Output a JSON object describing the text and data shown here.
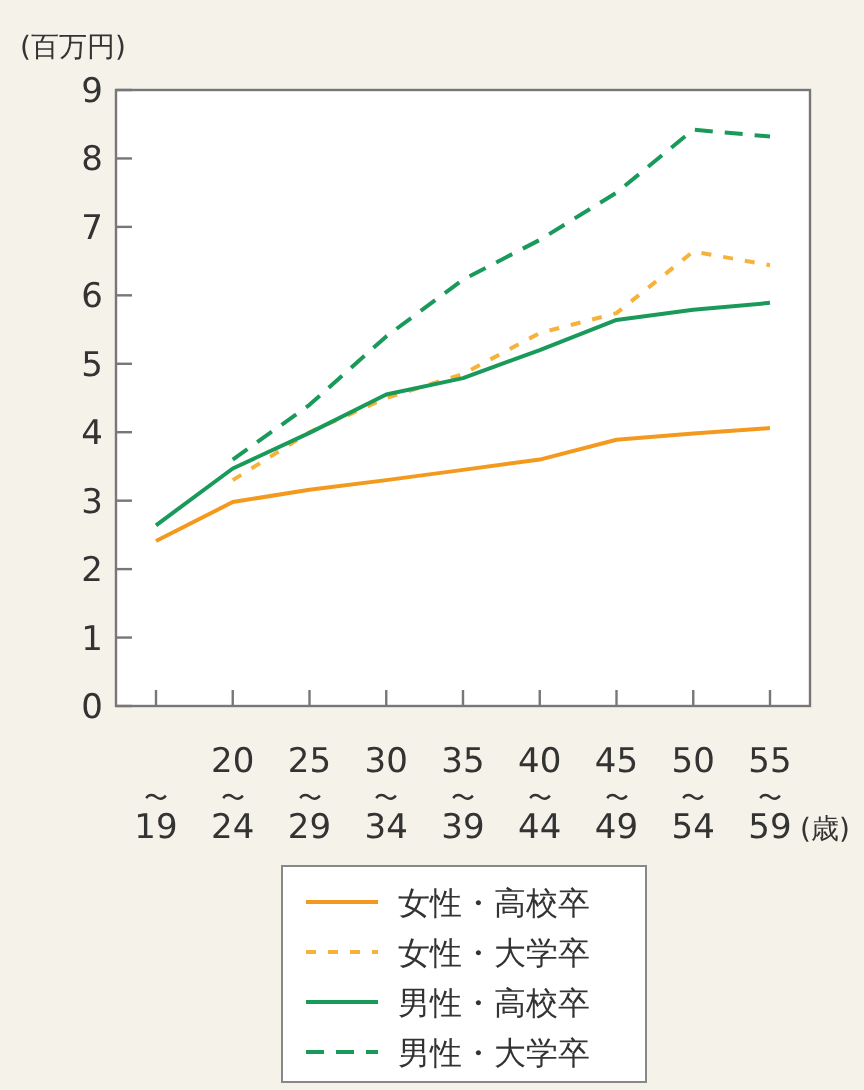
{
  "chart_data": {
    "type": "line",
    "ylabel": "(百万円)",
    "xlabel": "(歳)",
    "categories": [
      "〜19",
      "20〜24",
      "25〜29",
      "30〜34",
      "35〜39",
      "40〜44",
      "45〜49",
      "50〜54",
      "55〜59"
    ],
    "ylim": [
      0,
      9
    ],
    "yticks": [
      0,
      1,
      2,
      3,
      4,
      5,
      6,
      7,
      8,
      9
    ],
    "grid": false,
    "legend": "bottom",
    "series": [
      {
        "name": "女性・高校卒",
        "color": "#f39a1e",
        "line_style": "solid",
        "values": [
          2.41,
          2.98,
          3.16,
          3.3,
          3.45,
          3.6,
          3.89,
          3.98,
          4.06
        ]
      },
      {
        "name": "女性・大学卒",
        "color": "#f7b23c",
        "line_style": "dotted",
        "values": [
          null,
          3.3,
          4.0,
          4.5,
          4.85,
          5.45,
          5.74,
          6.64,
          6.44
        ]
      },
      {
        "name": "男性・高校卒",
        "color": "#1a9a5a",
        "line_style": "solid",
        "values": [
          2.64,
          3.47,
          3.99,
          4.55,
          4.79,
          5.2,
          5.64,
          5.79,
          5.89
        ]
      },
      {
        "name": "男性・大学卒",
        "color": "#1a9a5a",
        "line_style": "dashed",
        "values": [
          null,
          3.6,
          4.4,
          5.4,
          6.23,
          6.81,
          7.5,
          8.42,
          8.32
        ]
      }
    ]
  }
}
